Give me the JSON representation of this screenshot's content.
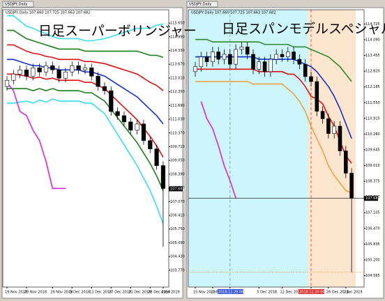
{
  "tabs": [
    "USDJPY,Daily",
    "USDJPY,Daily"
  ],
  "chart_data": [
    {
      "type": "candlestick",
      "title": "日足スーパーボリンジャー",
      "subtitle": "USDJPY,Daily 107.660 107.725 107.663 107.682",
      "categories": [
        "19 Nov 2018",
        null,
        null,
        "23 Nov 2018",
        null,
        null,
        null,
        "29 Nov 2018",
        null,
        null,
        "5 Dec 2018",
        null,
        null,
        "11 Dec 2018",
        null,
        null,
        "17 Dec 2018",
        null,
        null,
        "21 Dec 2018",
        null,
        null,
        "28 Dec 2018",
        null,
        "4 Jan 2019"
      ],
      "open": [
        112.6,
        112.9,
        113.2,
        113.4,
        113.1,
        113.5,
        113.3,
        113.6,
        113.4,
        113.0,
        113.3,
        113.6,
        113.4,
        113.5,
        113.1,
        112.6,
        112.4,
        111.4,
        111.2,
        110.9,
        110.5,
        110.8,
        110.0,
        109.6,
        108.8
      ],
      "high": [
        113.1,
        113.4,
        113.6,
        113.6,
        113.7,
        113.7,
        113.8,
        113.8,
        113.6,
        113.5,
        113.8,
        113.8,
        113.7,
        113.7,
        113.3,
        112.8,
        112.6,
        111.6,
        111.4,
        111.1,
        111.0,
        111.0,
        110.2,
        109.8,
        109.0
      ],
      "low": [
        112.4,
        112.7,
        113.0,
        112.9,
        112.9,
        113.1,
        113.1,
        113.2,
        112.8,
        112.8,
        113.1,
        113.2,
        113.2,
        112.9,
        112.4,
        112.2,
        111.2,
        111.0,
        110.7,
        110.3,
        110.3,
        109.8,
        109.4,
        108.6,
        104.9
      ],
      "close": [
        112.9,
        113.2,
        113.4,
        113.1,
        113.5,
        113.3,
        113.6,
        113.4,
        113.0,
        113.3,
        113.6,
        113.4,
        113.5,
        113.1,
        112.6,
        112.4,
        111.4,
        111.2,
        110.9,
        110.5,
        110.8,
        110.0,
        109.6,
        108.8,
        107.7
      ],
      "series": [
        {
          "color": "#33dff0",
          "values": [
            116.0,
            116.0,
            115.75,
            115.5,
            115.4,
            115.25,
            115.15,
            115.0,
            114.9,
            114.9,
            114.9,
            114.9,
            114.8,
            114.8,
            114.85,
            114.9,
            115.0,
            115.1,
            115.2,
            115.3,
            115.4,
            115.4,
            115.4,
            115.55,
            115.6
          ]
        },
        {
          "color": "#1a7f1a",
          "values": [
            115.3,
            115.3,
            115.1,
            114.9,
            114.8,
            114.7,
            114.6,
            114.5,
            114.4,
            114.4,
            114.4,
            114.4,
            114.3,
            114.3,
            114.3,
            114.3,
            114.3,
            114.3,
            114.3,
            114.3,
            114.3,
            114.2,
            114.1,
            114.1,
            114.0
          ]
        },
        {
          "color": "#e01010",
          "values": [
            114.6,
            114.6,
            114.45,
            114.3,
            114.2,
            114.15,
            114.05,
            114.0,
            113.9,
            113.9,
            113.9,
            113.9,
            113.8,
            113.8,
            113.75,
            113.7,
            113.6,
            113.5,
            113.4,
            113.3,
            113.2,
            113.0,
            112.8,
            112.65,
            112.4
          ]
        },
        {
          "color": "#1030d0",
          "values": [
            113.9,
            113.9,
            113.8,
            113.7,
            113.6,
            113.6,
            113.5,
            113.5,
            113.4,
            113.4,
            113.4,
            113.4,
            113.3,
            113.3,
            113.2,
            113.1,
            112.9,
            112.7,
            112.5,
            112.3,
            112.1,
            111.8,
            111.5,
            111.2,
            110.8
          ]
        },
        {
          "color": "#e01010",
          "values": [
            113.2,
            113.2,
            113.15,
            113.1,
            113.0,
            113.05,
            112.95,
            113.0,
            112.9,
            112.9,
            112.9,
            112.9,
            112.8,
            112.8,
            112.65,
            112.5,
            112.2,
            111.9,
            111.6,
            111.3,
            111.0,
            110.6,
            110.2,
            109.75,
            109.2
          ]
        },
        {
          "color": "#1a7f1a",
          "values": [
            112.5,
            112.5,
            112.5,
            112.5,
            112.4,
            112.5,
            112.4,
            112.5,
            112.4,
            112.4,
            112.4,
            112.4,
            112.3,
            112.3,
            112.1,
            111.9,
            111.5,
            111.1,
            110.7,
            110.3,
            109.9,
            109.4,
            108.9,
            108.3,
            107.6
          ]
        },
        {
          "color": "#33dff0",
          "values": [
            111.8,
            111.8,
            111.85,
            111.9,
            111.8,
            111.95,
            111.85,
            112.0,
            111.9,
            111.9,
            111.9,
            111.9,
            111.8,
            111.8,
            111.55,
            111.3,
            110.8,
            110.3,
            109.8,
            109.3,
            108.8,
            108.2,
            107.6,
            106.85,
            106.0
          ]
        },
        {
          "color": "#e020e0",
          "values": [
            112.8,
            112.4,
            111.4,
            111.2,
            110.5,
            110.0,
            109.0,
            107.7,
            107.7,
            107.7,
            null,
            null,
            null,
            null,
            null,
            null,
            null,
            null,
            null,
            null,
            null,
            null,
            null,
            null,
            null
          ]
        }
      ],
      "ylim": [
        102.96,
        116.29
      ],
      "yticks": [
        {
          "value": 115.65,
          "label": "115.650"
        },
        {
          "value": 114.99,
          "label": "114.990"
        },
        {
          "value": 114.33,
          "label": "114.330"
        },
        {
          "value": 113.67,
          "label": "113.670"
        },
        {
          "value": 113.01,
          "label": "113.010"
        },
        {
          "value": 112.35,
          "label": "112.350"
        },
        {
          "value": 111.69,
          "label": "111.690"
        },
        {
          "value": 111.03,
          "label": "111.030"
        },
        {
          "value": 110.37,
          "label": "110.370"
        },
        {
          "value": 109.71,
          "label": "109.710"
        },
        {
          "value": 109.05,
          "label": "109.050"
        },
        {
          "value": 108.39,
          "label": "108.390"
        },
        {
          "value": 107.73,
          "label": "107.730"
        },
        {
          "value": 107.07,
          "label": "107.070"
        },
        {
          "value": 106.41,
          "label": "106.410"
        },
        {
          "value": 105.75,
          "label": "105.750"
        },
        {
          "value": 105.09,
          "label": "105.090"
        },
        {
          "value": 104.43,
          "label": "104.430"
        },
        {
          "value": 103.77,
          "label": "103.770"
        }
      ],
      "price_line": 107.682,
      "grid": false
    },
    {
      "type": "candlestick",
      "title": "日足スパンモデルスペシャル",
      "subtitle": "USDJPY,Daily 107.660 107.725 107.663 107.682",
      "categories": [
        "15 Nov 2018",
        null,
        null,
        "21 No",
        null,
        null,
        "2018.11.29 00:00",
        null,
        null,
        null,
        null,
        "5 Dec 2018",
        null,
        null,
        null,
        "12 Dec 2018",
        null,
        null,
        null,
        null,
        "2018.12.20 00:00",
        null,
        null,
        "26 Dec 2018",
        null,
        null,
        "2 Jan 2019",
        null
      ],
      "open": [
        112.8,
        113.0,
        113.4,
        113.2,
        113.6,
        113.3,
        113.5,
        113.1,
        113.7,
        113.8,
        113.5,
        112.9,
        113.2,
        112.8,
        113.3,
        113.5,
        113.4,
        113.6,
        113.3,
        113.1,
        112.6,
        112.4,
        111.2,
        110.9,
        110.3,
        110.6,
        109.6,
        108.7
      ],
      "high": [
        113.2,
        113.6,
        113.6,
        113.8,
        113.8,
        113.7,
        113.7,
        113.9,
        114.0,
        114.0,
        113.7,
        113.4,
        113.4,
        113.5,
        113.7,
        113.7,
        113.8,
        113.8,
        113.5,
        113.3,
        112.8,
        112.6,
        111.4,
        111.1,
        110.8,
        110.8,
        109.8,
        108.9
      ],
      "low": [
        112.6,
        112.8,
        113.0,
        113.0,
        113.1,
        113.1,
        112.9,
        112.9,
        113.5,
        113.3,
        112.7,
        112.7,
        112.6,
        112.6,
        113.1,
        113.2,
        113.2,
        113.1,
        112.9,
        112.4,
        112.2,
        111.0,
        110.7,
        110.1,
        110.1,
        109.4,
        108.5,
        104.7
      ],
      "close": [
        113.0,
        113.4,
        113.2,
        113.6,
        113.3,
        113.5,
        113.1,
        113.7,
        113.8,
        113.5,
        112.9,
        113.2,
        112.8,
        113.3,
        113.5,
        113.4,
        113.6,
        113.3,
        113.1,
        112.6,
        112.4,
        111.2,
        110.9,
        110.3,
        110.6,
        109.6,
        108.7,
        107.7
      ],
      "series": [
        {
          "color": "#2e8b2e",
          "values": [
            114.1,
            114.1,
            114.1,
            114.0,
            114.0,
            114.0,
            114.0,
            114.0,
            114.0,
            114.0,
            114.0,
            114.0,
            113.9,
            113.9,
            113.9,
            113.9,
            113.9,
            113.8,
            113.8,
            113.8,
            113.7,
            113.6,
            113.5,
            113.4,
            113.2,
            113.0,
            112.7,
            112.4
          ]
        },
        {
          "color": "#1030d0",
          "values": [
            113.4,
            113.4,
            113.4,
            113.4,
            113.4,
            113.4,
            113.4,
            113.4,
            113.4,
            113.4,
            113.4,
            113.3,
            113.3,
            113.3,
            113.3,
            113.3,
            113.3,
            113.3,
            113.2,
            113.1,
            113.0,
            112.8,
            112.5,
            112.2,
            111.8,
            111.3,
            110.7,
            110.1
          ]
        },
        {
          "color": "#e01010",
          "values": [
            112.9,
            112.9,
            112.9,
            112.9,
            112.9,
            112.9,
            112.9,
            112.9,
            112.9,
            112.9,
            112.9,
            112.8,
            112.8,
            112.8,
            112.8,
            112.8,
            112.7,
            112.7,
            112.5,
            112.2,
            111.8,
            111.7,
            111.5,
            111.0,
            110.6,
            110.0,
            109.4,
            109.1
          ]
        },
        {
          "color": "#f0a040",
          "values": [
            112.4,
            112.4,
            112.4,
            112.4,
            112.4,
            112.4,
            112.4,
            112.4,
            112.4,
            112.4,
            112.3,
            112.3,
            112.3,
            112.3,
            112.3,
            112.3,
            112.1,
            111.9,
            111.6,
            111.2,
            110.6,
            110.1,
            109.6,
            109.0,
            108.6,
            108.3,
            108.0,
            107.9
          ]
        },
        {
          "color": "#e020e0",
          "values": [
            null,
            111.6,
            110.9,
            110.5,
            109.8,
            109.0,
            108.4,
            107.7,
            null,
            null,
            null,
            null,
            null,
            null,
            null,
            null,
            null,
            null,
            null,
            null,
            null,
            null,
            null,
            null,
            null,
            null,
            null,
            null
          ]
        }
      ],
      "ylim": [
        104.1,
        115.3
      ],
      "yticks": [
        104.565,
        {
          "value": 105.2,
          "label": "105.200"
        },
        105.835,
        {
          "value": 106.47,
          "label": "106.470"
        },
        107.105,
        {
          "value": 107.74,
          "label": "107.740"
        },
        108.375,
        {
          "value": 109.01,
          "label": "109.010"
        },
        109.645,
        {
          "value": 110.28,
          "label": "110.280"
        },
        110.915,
        {
          "value": 111.55,
          "label": "111.550"
        },
        112.185,
        {
          "value": 112.82,
          "label": "112.820"
        },
        113.455,
        {
          "value": 114.09,
          "label": "114.090"
        },
        114.725
      ],
      "price_line": 107.682,
      "hlines": [
        {
          "value": 104.7,
          "color": "#f0a040"
        }
      ],
      "grid": false
    }
  ]
}
